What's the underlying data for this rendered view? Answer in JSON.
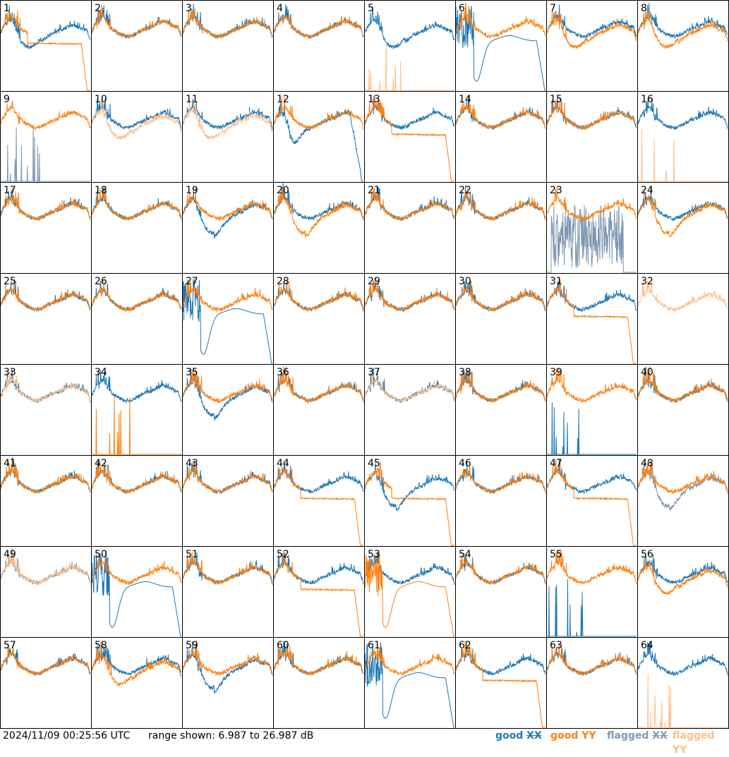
{
  "chart_data": {
    "type": "line",
    "grid": "8x8 small multiples, no axes",
    "x_unit": "spectral channel (0-100, normalized)",
    "y_unit": "dB",
    "ylim": [
      6.987,
      26.987
    ],
    "colors": {
      "good_xx": "#1f77b4",
      "good_yy": "#ff7f0e",
      "flagged_xx": "#7f97b2",
      "flagged_yy": "#ffbf8a"
    },
    "tiles": [
      {
        "label": "1",
        "xx": "b",
        "yy": "d"
      },
      {
        "label": "2",
        "xx": "a",
        "yy": "a"
      },
      {
        "label": "3",
        "xx": "a",
        "yy": "a"
      },
      {
        "label": "4",
        "xx": "a",
        "yy": "a"
      },
      {
        "label": "5",
        "xx": "b",
        "yy": "spike",
        "yy_state": "flagged"
      },
      {
        "label": "6",
        "xx": "e",
        "yy": "a"
      },
      {
        "label": "7",
        "xx": "a",
        "yy": "b"
      },
      {
        "label": "8",
        "xx": "a",
        "yy": "b"
      },
      {
        "label": "9",
        "xx": "spike",
        "xx_state": "flagged",
        "yy": "a"
      },
      {
        "label": "10",
        "xx": "a",
        "yy": "b",
        "yy_state": "flagged"
      },
      {
        "label": "11",
        "xx": "a",
        "yy": "b",
        "yy_state": "flagged"
      },
      {
        "label": "12",
        "xx": "f",
        "yy": "a"
      },
      {
        "label": "13",
        "xx": "a",
        "yy": "d"
      },
      {
        "label": "14",
        "xx": "a",
        "yy": "a"
      },
      {
        "label": "15",
        "xx": "a",
        "yy": "a"
      },
      {
        "label": "16",
        "xx": "a",
        "yy": "spike",
        "yy_state": "flagged"
      },
      {
        "label": "17",
        "xx": "a",
        "yy": "a"
      },
      {
        "label": "18",
        "xx": "a",
        "yy": "a"
      },
      {
        "label": "19",
        "xx": "c",
        "yy": "a"
      },
      {
        "label": "20",
        "xx": "a",
        "yy": "c"
      },
      {
        "label": "21",
        "xx": "a",
        "yy": "a"
      },
      {
        "label": "22",
        "xx": "a",
        "yy": "a"
      },
      {
        "label": "23",
        "xx": "noise",
        "xx_state": "flagged",
        "yy": "a"
      },
      {
        "label": "24",
        "xx": "a",
        "yy": "c"
      },
      {
        "label": "25",
        "xx": "a",
        "yy": "a"
      },
      {
        "label": "26",
        "xx": "a",
        "yy": "a"
      },
      {
        "label": "27",
        "xx": "e",
        "yy": "a"
      },
      {
        "label": "28",
        "xx": "a",
        "yy": "a"
      },
      {
        "label": "29",
        "xx": "a",
        "yy": "a"
      },
      {
        "label": "30",
        "xx": "a",
        "yy": "a"
      },
      {
        "label": "31",
        "xx": "a",
        "yy": "d"
      },
      {
        "label": "32",
        "xx": "none",
        "yy": "a",
        "yy_state": "flagged"
      },
      {
        "label": "33",
        "xx": "a",
        "yy": "a",
        "yy_state": "flagged"
      },
      {
        "label": "34",
        "xx": "a",
        "yy": "spike"
      },
      {
        "label": "35",
        "xx": "c",
        "yy": "a"
      },
      {
        "label": "36",
        "xx": "a",
        "yy": "a"
      },
      {
        "label": "37",
        "xx": "a",
        "yy": "a",
        "yy_state": "flagged"
      },
      {
        "label": "38",
        "xx": "a",
        "yy": "a"
      },
      {
        "label": "39",
        "xx": "spike",
        "yy": "a"
      },
      {
        "label": "40",
        "xx": "a",
        "yy": "a"
      },
      {
        "label": "41",
        "xx": "a",
        "yy": "a"
      },
      {
        "label": "42",
        "xx": "a",
        "yy": "a"
      },
      {
        "label": "43",
        "xx": "a",
        "yy": "a"
      },
      {
        "label": "44",
        "xx": "a",
        "yy": "d"
      },
      {
        "label": "45",
        "xx": "c",
        "yy": "d"
      },
      {
        "label": "46",
        "xx": "a",
        "yy": "a"
      },
      {
        "label": "47",
        "xx": "a",
        "yy": "d"
      },
      {
        "label": "48",
        "xx": "c",
        "xx_state": "flagged",
        "yy": "a"
      },
      {
        "label": "49",
        "xx": "a",
        "xx_state": "flagged",
        "yy": "a",
        "yy_state": "flagged"
      },
      {
        "label": "50",
        "xx": "e",
        "yy": "a"
      },
      {
        "label": "51",
        "xx": "a",
        "yy": "a"
      },
      {
        "label": "52",
        "xx": "a",
        "yy": "d"
      },
      {
        "label": "53",
        "xx": "a",
        "yy": "e"
      },
      {
        "label": "54",
        "xx": "a",
        "yy": "a"
      },
      {
        "label": "55",
        "xx": "spike",
        "yy": "a"
      },
      {
        "label": "56",
        "xx": "a",
        "yy": "b"
      },
      {
        "label": "57",
        "xx": "a",
        "yy": "a"
      },
      {
        "label": "58",
        "xx": "a",
        "yy": "b"
      },
      {
        "label": "59",
        "xx": "c",
        "yy": "a"
      },
      {
        "label": "60",
        "xx": "a",
        "yy": "a"
      },
      {
        "label": "61",
        "xx": "e",
        "yy": "a"
      },
      {
        "label": "62",
        "xx": "a",
        "yy": "d"
      },
      {
        "label": "63",
        "xx": "a",
        "yy": "a"
      },
      {
        "label": "64",
        "xx": "a",
        "yy": "spike",
        "yy_state": "flagged"
      }
    ]
  },
  "footer": {
    "timestamp": "2024/11/09 00:25:56 UTC",
    "range": "range shown: 6.987 to 26.987 dB",
    "legend": {
      "good_xx": {
        "prefix": "good",
        "pol": "XX"
      },
      "good_yy": {
        "prefix": "good",
        "pol": "YY"
      },
      "flagged_xx": {
        "prefix": "flagged",
        "pol": "XX"
      },
      "flagged_yy": {
        "prefix": "flagged",
        "pol": "YY"
      }
    }
  }
}
